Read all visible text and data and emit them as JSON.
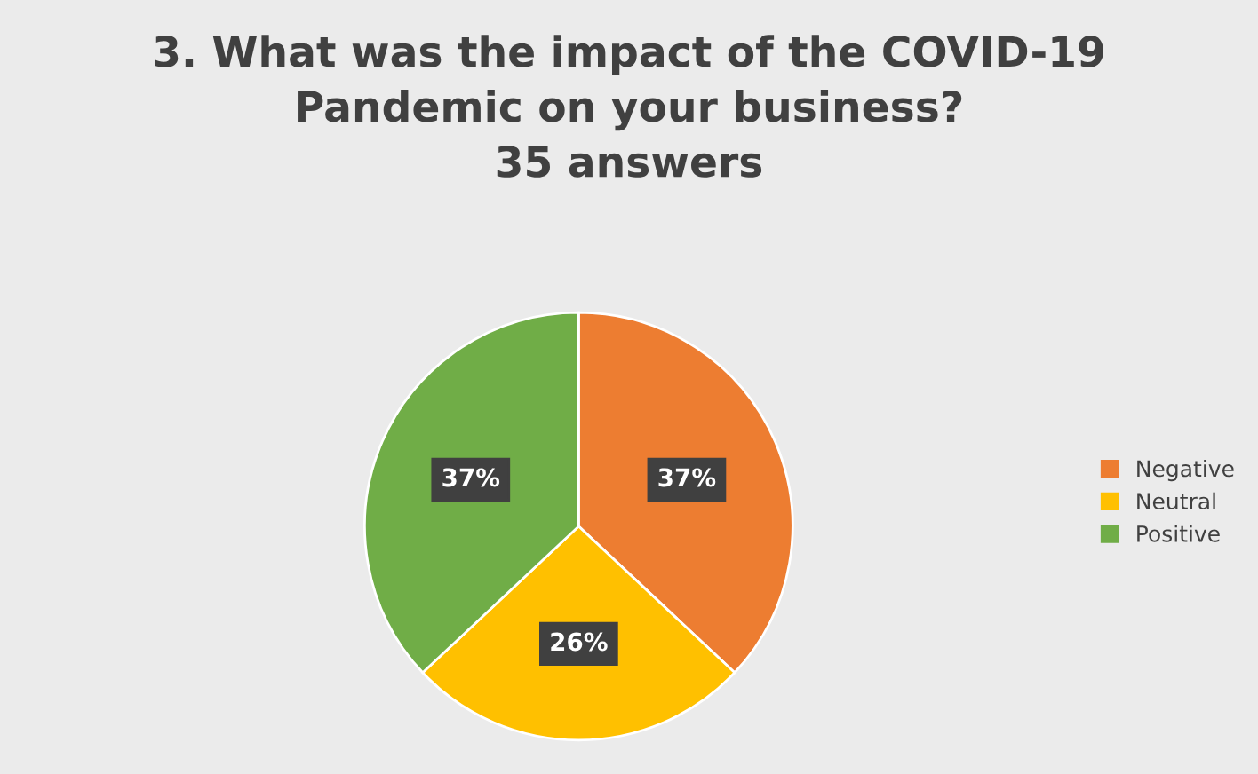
{
  "chart_data": {
    "type": "pie",
    "title": "3. What was the impact of the COVID-19\nPandemic on your business?\n35 answers",
    "categories": [
      "Negative",
      "Neutral",
      "Positive"
    ],
    "values": [
      37,
      26,
      37
    ],
    "value_labels": [
      "37%",
      "26%",
      "37%"
    ],
    "colors": [
      "#ed7d31",
      "#ffc000",
      "#70ad47"
    ],
    "legend": "right"
  }
}
